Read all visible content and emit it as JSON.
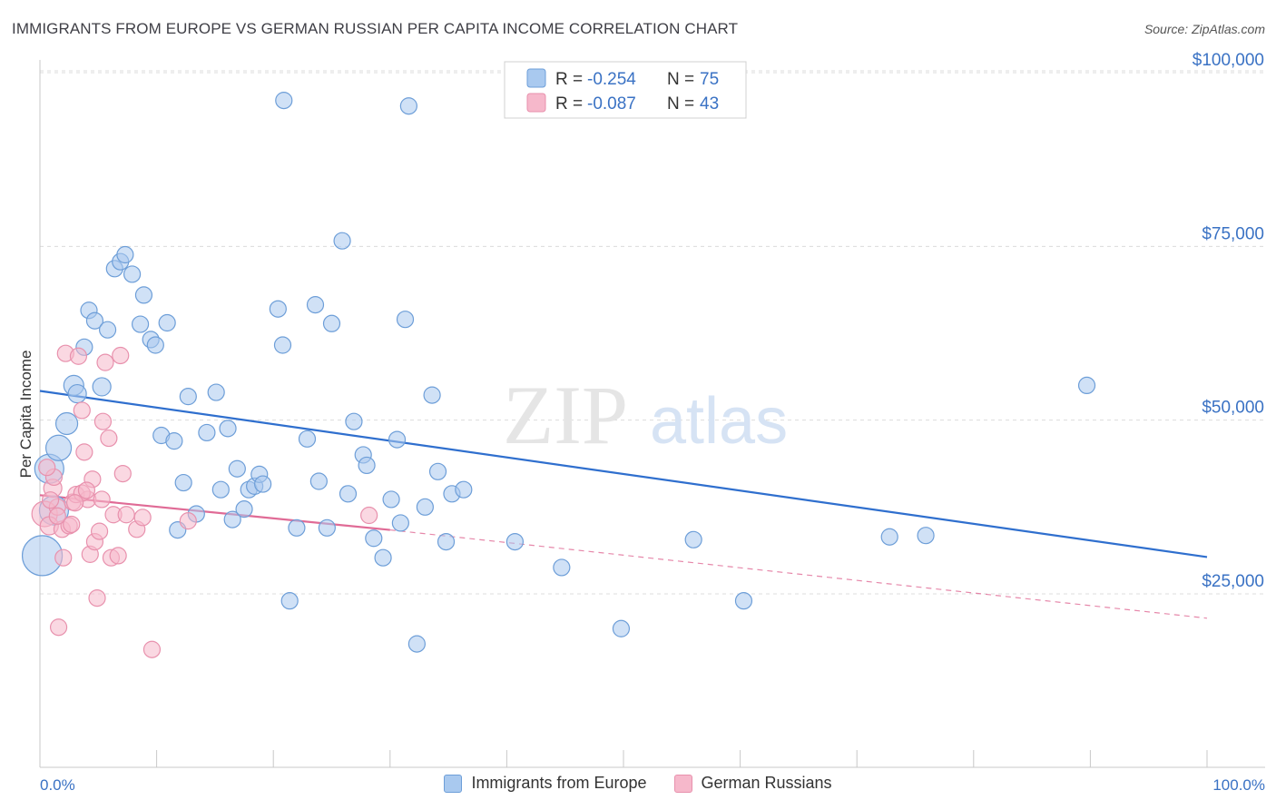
{
  "title": "IMMIGRANTS FROM EUROPE VS GERMAN RUSSIAN PER CAPITA INCOME CORRELATION CHART",
  "source": "Source: ZipAtlas.com",
  "watermark": {
    "zip": "ZIP",
    "atlas": "atlas"
  },
  "colors": {
    "blue_fill": "#a9c9ef",
    "blue_stroke": "#6d9ed8",
    "blue_line": "#2f6fce",
    "pink_fill": "#f6b8cb",
    "pink_stroke": "#e891ad",
    "pink_line": "#e06b96",
    "axis_text": "#3a72c4",
    "grid": "#dcdcdc"
  },
  "stats_legend": [
    {
      "r_label": "R =",
      "r_value": "-0.254",
      "n_label": "N =",
      "n_value": "75"
    },
    {
      "r_label": "R =",
      "r_value": "-0.087",
      "n_label": "N =",
      "n_value": "43"
    }
  ],
  "chart_data": {
    "type": "scatter",
    "xlabel": "",
    "ylabel": "Per Capita Income",
    "xlim": [
      0,
      100
    ],
    "ylim": [
      0,
      105000
    ],
    "x_tick_labels": {
      "left": "0.0%",
      "right": "100.0%"
    },
    "y_ticks": [
      {
        "value": 25000,
        "label": "$25,000"
      },
      {
        "value": 50000,
        "label": "$50,000"
      },
      {
        "value": 75000,
        "label": "$75,000"
      },
      {
        "value": 100000,
        "label": "$100,000"
      }
    ],
    "grid": true,
    "legend_position": "bottom",
    "series": [
      {
        "name": "Immigrants from Europe",
        "color": "blue",
        "trend": {
          "x0": 0,
          "y0": 54200,
          "x1": 100,
          "y1": 30300,
          "dashed_to": 100
        },
        "points": [
          [
            0.2,
            30500,
            22
          ],
          [
            0.8,
            43000,
            16
          ],
          [
            1.2,
            37000,
            16
          ],
          [
            1.6,
            46000,
            14
          ],
          [
            2.3,
            49500,
            12
          ],
          [
            2.9,
            55000,
            11
          ],
          [
            3.2,
            53800,
            10
          ],
          [
            3.8,
            60500,
            9
          ],
          [
            4.2,
            65800,
            9
          ],
          [
            4.7,
            64300,
            9
          ],
          [
            5.3,
            54800,
            10
          ],
          [
            5.8,
            63000,
            9
          ],
          [
            6.4,
            71800,
            9
          ],
          [
            6.9,
            72800,
            9
          ],
          [
            7.3,
            73800,
            9
          ],
          [
            7.9,
            71000,
            9
          ],
          [
            8.6,
            63800,
            9
          ],
          [
            8.9,
            68000,
            9
          ],
          [
            9.5,
            61600,
            9
          ],
          [
            9.9,
            60800,
            9
          ],
          [
            10.4,
            47800,
            9
          ],
          [
            10.9,
            64000,
            9
          ],
          [
            11.5,
            47000,
            9
          ],
          [
            11.8,
            34200,
            9
          ],
          [
            12.3,
            41000,
            9
          ],
          [
            12.7,
            53400,
            9
          ],
          [
            13.4,
            36500,
            9
          ],
          [
            14.3,
            48200,
            9
          ],
          [
            15.1,
            54000,
            9
          ],
          [
            15.5,
            40000,
            9
          ],
          [
            16.1,
            48800,
            9
          ],
          [
            16.5,
            35700,
            9
          ],
          [
            16.9,
            43000,
            9
          ],
          [
            17.5,
            37200,
            9
          ],
          [
            17.9,
            40000,
            9
          ],
          [
            18.4,
            40500,
            9
          ],
          [
            18.8,
            42200,
            9
          ],
          [
            19.1,
            40800,
            9
          ],
          [
            20.8,
            60800,
            9
          ],
          [
            20.4,
            66000,
            9
          ],
          [
            21.4,
            24000,
            9
          ],
          [
            22.0,
            34500,
            9
          ],
          [
            22.9,
            47300,
            9
          ],
          [
            23.6,
            66600,
            9
          ],
          [
            23.9,
            41200,
            9
          ],
          [
            24.6,
            34500,
            9
          ],
          [
            25.0,
            63900,
            9
          ],
          [
            25.9,
            75800,
            9
          ],
          [
            26.4,
            39400,
            9
          ],
          [
            26.9,
            49800,
            9
          ],
          [
            27.7,
            45000,
            9
          ],
          [
            28.0,
            43500,
            9
          ],
          [
            28.6,
            33000,
            9
          ],
          [
            29.4,
            30200,
            9
          ],
          [
            30.1,
            38600,
            9
          ],
          [
            30.6,
            47200,
            9
          ],
          [
            30.9,
            35200,
            9
          ],
          [
            31.6,
            95200,
            9
          ],
          [
            31.3,
            64500,
            9
          ],
          [
            32.3,
            17800,
            9
          ],
          [
            33.0,
            37500,
            9
          ],
          [
            33.6,
            53600,
            9
          ],
          [
            34.1,
            42600,
            9
          ],
          [
            34.8,
            32500,
            9
          ],
          [
            35.3,
            39400,
            9
          ],
          [
            36.3,
            40000,
            9
          ],
          [
            20.9,
            96000,
            9
          ],
          [
            40.7,
            32500,
            9
          ],
          [
            44.7,
            28800,
            9
          ],
          [
            49.8,
            20000,
            9
          ],
          [
            56.0,
            32800,
            9
          ],
          [
            60.3,
            24000,
            9
          ],
          [
            72.8,
            33200,
            9
          ],
          [
            75.9,
            33400,
            9
          ],
          [
            89.7,
            55000,
            9
          ]
        ]
      },
      {
        "name": "German Russians",
        "color": "pink",
        "trend": {
          "x0": 0,
          "y0": 39200,
          "x1": 30,
          "y1": 34200,
          "dashed_to": 100,
          "y_end": 21500
        },
        "points": [
          [
            0.4,
            36500,
            14
          ],
          [
            0.8,
            34800,
            10
          ],
          [
            1.1,
            40200,
            10
          ],
          [
            1.5,
            37500,
            9
          ],
          [
            1.9,
            34300,
            9
          ],
          [
            2.2,
            59600,
            9
          ],
          [
            2.5,
            34800,
            9
          ],
          [
            2.8,
            38200,
            9
          ],
          [
            3.1,
            39300,
            9
          ],
          [
            3.3,
            59200,
            9
          ],
          [
            3.6,
            51400,
            9
          ],
          [
            3.8,
            45400,
            9
          ],
          [
            4.1,
            38600,
            9
          ],
          [
            4.3,
            30700,
            9
          ],
          [
            4.5,
            41500,
            9
          ],
          [
            4.7,
            32500,
            9
          ],
          [
            4.9,
            24400,
            9
          ],
          [
            5.1,
            34000,
            9
          ],
          [
            5.4,
            49800,
            9
          ],
          [
            5.6,
            58300,
            9
          ],
          [
            5.9,
            47400,
            9
          ],
          [
            6.1,
            30200,
            9
          ],
          [
            6.3,
            36400,
            9
          ],
          [
            6.7,
            30500,
            9
          ],
          [
            6.9,
            59300,
            9
          ],
          [
            7.1,
            42300,
            9
          ],
          [
            7.4,
            36400,
            9
          ],
          [
            8.3,
            34300,
            9
          ],
          [
            8.8,
            36000,
            9
          ],
          [
            9.6,
            17000,
            9
          ],
          [
            1.6,
            20200,
            9
          ],
          [
            2.0,
            30200,
            9
          ],
          [
            3.6,
            39500,
            9
          ],
          [
            5.3,
            38600,
            9
          ],
          [
            1.2,
            41800,
            9
          ],
          [
            0.6,
            43200,
            9
          ],
          [
            2.7,
            35000,
            9
          ],
          [
            4.0,
            39900,
            9
          ],
          [
            0.9,
            38500,
            9
          ],
          [
            12.7,
            35500,
            9
          ],
          [
            28.2,
            36300,
            9
          ],
          [
            1.5,
            36200,
            9
          ],
          [
            3.0,
            38100,
            9
          ]
        ]
      }
    ]
  }
}
